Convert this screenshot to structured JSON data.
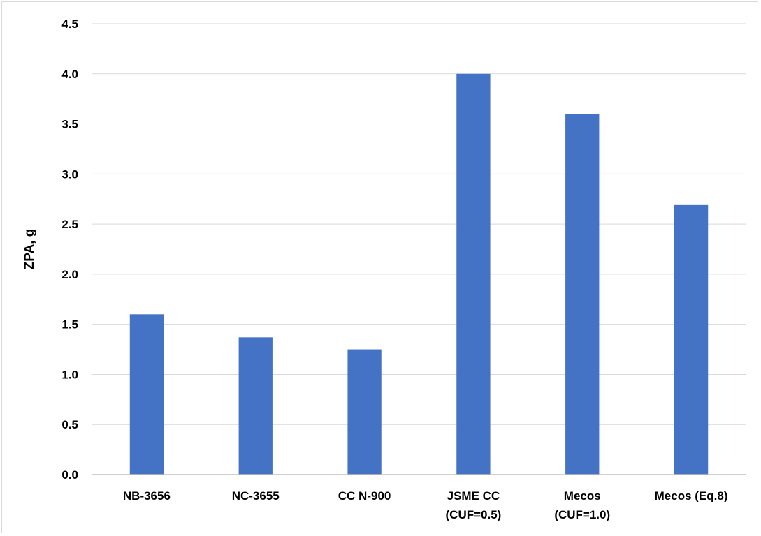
{
  "chart_data": {
    "type": "bar",
    "title": "",
    "xlabel": "",
    "ylabel": "ZPA, g",
    "ylim": [
      0,
      4.5
    ],
    "yticks": [
      "0.0",
      "0.5",
      "1.0",
      "1.5",
      "2.0",
      "2.5",
      "3.0",
      "3.5",
      "4.0",
      "4.5"
    ],
    "grid": true,
    "legend": "none",
    "bar_color": "#4472c4",
    "categories": [
      [
        "NB-3656"
      ],
      [
        "NC-3655"
      ],
      [
        "CC N-900"
      ],
      [
        "JSME CC",
        "(CUF=0.5)"
      ],
      [
        "Mecos",
        "(CUF=1.0)"
      ],
      [
        "Mecos (Eq.8)"
      ]
    ],
    "values": [
      1.6,
      1.37,
      1.25,
      4.0,
      3.6,
      2.69
    ]
  }
}
